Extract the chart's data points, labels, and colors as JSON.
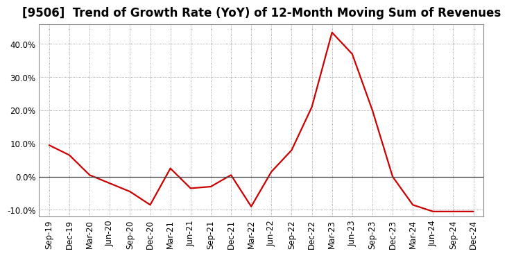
{
  "title": "[9506]  Trend of Growth Rate (YoY) of 12-Month Moving Sum of Revenues",
  "line_color": "#cc0000",
  "background_color": "#ffffff",
  "grid_color": "#888888",
  "zero_line_color": "#444444",
  "border_color": "#888888",
  "labels": [
    "Sep-19",
    "Dec-19",
    "Mar-20",
    "Jun-20",
    "Sep-20",
    "Dec-20",
    "Mar-21",
    "Jun-21",
    "Sep-21",
    "Dec-21",
    "Mar-22",
    "Jun-22",
    "Sep-22",
    "Dec-22",
    "Mar-23",
    "Jun-23",
    "Sep-23",
    "Dec-23",
    "Mar-24",
    "Jun-24",
    "Sep-24",
    "Dec-24"
  ],
  "values": [
    9.5,
    6.5,
    0.5,
    -2.0,
    -4.5,
    -8.5,
    2.5,
    -3.5,
    -3.0,
    0.5,
    -9.0,
    1.5,
    8.0,
    21.0,
    43.5,
    37.0,
    20.0,
    0.0,
    -8.5,
    -10.5,
    -10.5,
    -10.5
  ],
  "ylim": [
    -12.0,
    46.0
  ],
  "yticks": [
    -10.0,
    0.0,
    10.0,
    20.0,
    30.0,
    40.0
  ],
  "title_fontsize": 12,
  "tick_fontsize": 8.5,
  "linewidth": 1.6
}
